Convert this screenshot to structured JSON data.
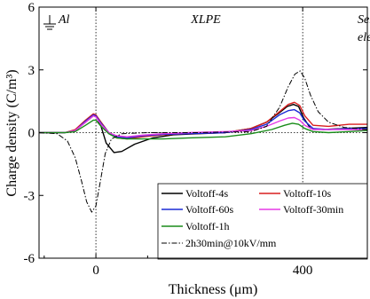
{
  "chart_data": {
    "type": "line",
    "xlabel": "Thickness (μm)",
    "ylabel": "Charge density (C/m³)",
    "xlim": [
      -110,
      525
    ],
    "ylim": [
      -6,
      6
    ],
    "xticks": [
      0,
      400
    ],
    "yticks": [
      -6,
      -3,
      0,
      3,
      6
    ],
    "grid": false,
    "legend_position": "bottom-right",
    "region_labels": {
      "electrode_left": "Al",
      "bulk": "XLPE",
      "electrode_right_line1": "Semicond.",
      "electrode_right_line2": "electrode"
    },
    "vertical_markers": [
      0,
      400
    ],
    "series": [
      {
        "name": "Voltoff-4s",
        "color": "#000000",
        "dash": "solid",
        "points": [
          [
            -110,
            0
          ],
          [
            -60,
            0
          ],
          [
            -40,
            0.1
          ],
          [
            -20,
            0.5
          ],
          [
            -5,
            0.8
          ],
          [
            0,
            0.8
          ],
          [
            10,
            0.3
          ],
          [
            20,
            -0.5
          ],
          [
            35,
            -0.95
          ],
          [
            50,
            -0.9
          ],
          [
            75,
            -0.55
          ],
          [
            110,
            -0.25
          ],
          [
            150,
            -0.1
          ],
          [
            200,
            -0.05
          ],
          [
            250,
            0
          ],
          [
            300,
            0.2
          ],
          [
            330,
            0.5
          ],
          [
            355,
            0.95
          ],
          [
            370,
            1.25
          ],
          [
            382,
            1.35
          ],
          [
            392,
            1.25
          ],
          [
            402,
            0.7
          ],
          [
            415,
            0.2
          ],
          [
            440,
            0.15
          ],
          [
            480,
            0.2
          ],
          [
            525,
            0.25
          ]
        ]
      },
      {
        "name": "Voltoff-10s",
        "color": "#d81e1e",
        "dash": "solid",
        "points": [
          [
            -110,
            0
          ],
          [
            -60,
            0
          ],
          [
            -40,
            0.15
          ],
          [
            -20,
            0.6
          ],
          [
            -5,
            0.9
          ],
          [
            0,
            0.85
          ],
          [
            10,
            0.5
          ],
          [
            25,
            0
          ],
          [
            40,
            -0.25
          ],
          [
            60,
            -0.3
          ],
          [
            90,
            -0.2
          ],
          [
            130,
            -0.1
          ],
          [
            180,
            -0.05
          ],
          [
            250,
            0
          ],
          [
            300,
            0.2
          ],
          [
            330,
            0.5
          ],
          [
            355,
            1.0
          ],
          [
            372,
            1.35
          ],
          [
            384,
            1.45
          ],
          [
            394,
            1.3
          ],
          [
            404,
            0.8
          ],
          [
            420,
            0.35
          ],
          [
            450,
            0.3
          ],
          [
            490,
            0.4
          ],
          [
            525,
            0.4
          ]
        ]
      },
      {
        "name": "Voltoff-60s",
        "color": "#1c2bd6",
        "dash": "solid",
        "points": [
          [
            -110,
            0
          ],
          [
            -60,
            0
          ],
          [
            -40,
            0.1
          ],
          [
            -20,
            0.55
          ],
          [
            -5,
            0.85
          ],
          [
            0,
            0.8
          ],
          [
            10,
            0.45
          ],
          [
            25,
            0
          ],
          [
            40,
            -0.2
          ],
          [
            60,
            -0.25
          ],
          [
            90,
            -0.15
          ],
          [
            130,
            -0.08
          ],
          [
            180,
            -0.05
          ],
          [
            250,
            0
          ],
          [
            300,
            0.15
          ],
          [
            330,
            0.4
          ],
          [
            355,
            0.85
          ],
          [
            372,
            1.05
          ],
          [
            384,
            1.1
          ],
          [
            394,
            0.95
          ],
          [
            404,
            0.55
          ],
          [
            420,
            0.2
          ],
          [
            450,
            0.15
          ],
          [
            490,
            0.2
          ],
          [
            525,
            0.2
          ]
        ]
      },
      {
        "name": "Voltoff-30min",
        "color": "#e53ae5",
        "dash": "solid",
        "points": [
          [
            -110,
            0
          ],
          [
            -60,
            0
          ],
          [
            -40,
            0.1
          ],
          [
            -20,
            0.5
          ],
          [
            -5,
            0.8
          ],
          [
            0,
            0.75
          ],
          [
            10,
            0.4
          ],
          [
            25,
            0
          ],
          [
            40,
            -0.15
          ],
          [
            60,
            -0.2
          ],
          [
            90,
            -0.12
          ],
          [
            130,
            -0.05
          ],
          [
            180,
            0
          ],
          [
            250,
            0.05
          ],
          [
            300,
            0.1
          ],
          [
            330,
            0.3
          ],
          [
            355,
            0.55
          ],
          [
            372,
            0.7
          ],
          [
            384,
            0.72
          ],
          [
            394,
            0.6
          ],
          [
            404,
            0.35
          ],
          [
            420,
            0.15
          ],
          [
            450,
            0.15
          ],
          [
            490,
            0.15
          ],
          [
            525,
            0.15
          ]
        ]
      },
      {
        "name": "Voltoff-1h",
        "color": "#1a8c1a",
        "dash": "solid",
        "points": [
          [
            -110,
            0
          ],
          [
            -60,
            0
          ],
          [
            -40,
            0.05
          ],
          [
            -20,
            0.35
          ],
          [
            -5,
            0.6
          ],
          [
            0,
            0.6
          ],
          [
            10,
            0.3
          ],
          [
            25,
            -0.05
          ],
          [
            40,
            -0.25
          ],
          [
            60,
            -0.3
          ],
          [
            90,
            -0.3
          ],
          [
            130,
            -0.3
          ],
          [
            180,
            -0.25
          ],
          [
            250,
            -0.2
          ],
          [
            300,
            -0.05
          ],
          [
            340,
            0.15
          ],
          [
            365,
            0.35
          ],
          [
            380,
            0.45
          ],
          [
            392,
            0.4
          ],
          [
            404,
            0.2
          ],
          [
            420,
            0.05
          ],
          [
            450,
            0
          ],
          [
            490,
            0.05
          ],
          [
            525,
            0.1
          ]
        ]
      },
      {
        "name": "2h30min@10kV/mm",
        "color": "#000000",
        "dash": "dashdot",
        "points": [
          [
            -110,
            0
          ],
          [
            -75,
            -0.05
          ],
          [
            -55,
            -0.4
          ],
          [
            -40,
            -1.2
          ],
          [
            -28,
            -2.3
          ],
          [
            -18,
            -3.3
          ],
          [
            -8,
            -3.8
          ],
          [
            0,
            -3.5
          ],
          [
            8,
            -2.4
          ],
          [
            18,
            -1.0
          ],
          [
            30,
            -0.3
          ],
          [
            50,
            -0.05
          ],
          [
            100,
            0
          ],
          [
            200,
            0
          ],
          [
            300,
            0.05
          ],
          [
            330,
            0.3
          ],
          [
            355,
            1.2
          ],
          [
            372,
            2.2
          ],
          [
            385,
            2.8
          ],
          [
            395,
            2.95
          ],
          [
            404,
            2.6
          ],
          [
            415,
            1.8
          ],
          [
            430,
            1.0
          ],
          [
            450,
            0.5
          ],
          [
            480,
            0.25
          ],
          [
            525,
            0.15
          ]
        ]
      }
    ]
  }
}
